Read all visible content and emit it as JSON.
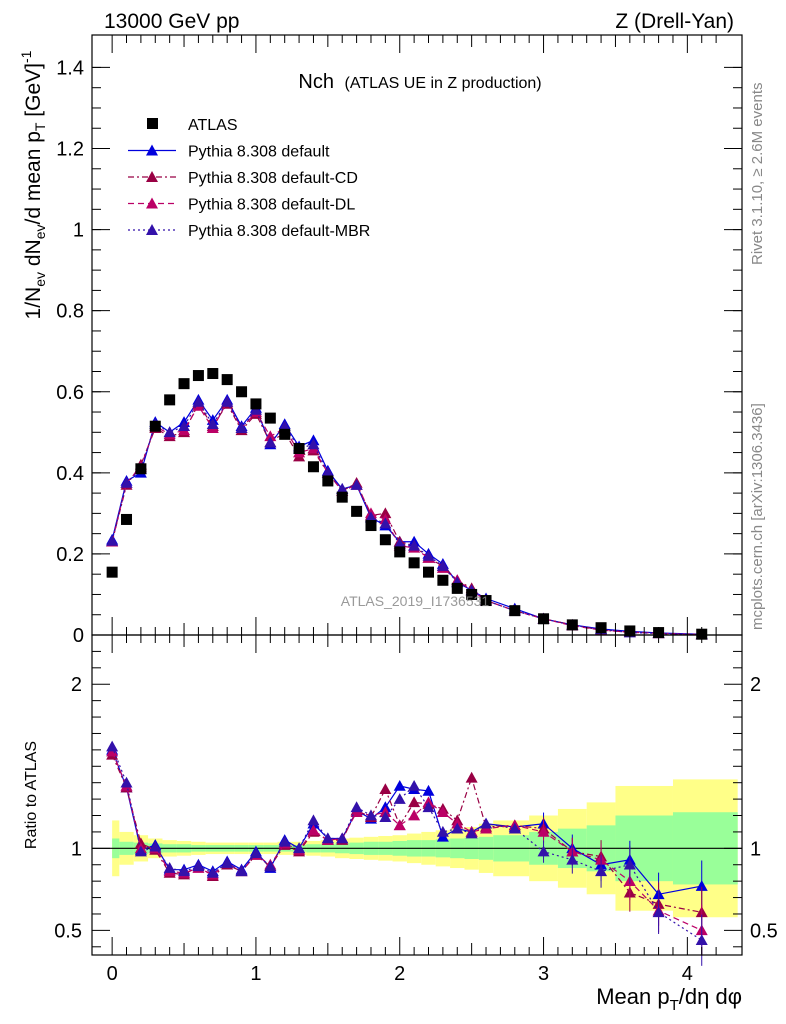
{
  "header": {
    "left": "13000 GeV pp",
    "right": "Z (Drell-Yan)"
  },
  "side_labels": {
    "rivet": "Rivet 3.1.10, ≥ 2.6M events",
    "mcplots": "mcplots.cern.ch [arXiv:1306.3436]"
  },
  "watermark": "ATLAS_2019_I1736531",
  "chart_data": [
    {
      "type": "scatter",
      "title": "Nch",
      "subtitle": "(ATLAS UE in Z production)",
      "ylabel": "1/N_ev dN_ev/d mean p_T [GeV]^-1",
      "xlim": [
        -0.14,
        4.38
      ],
      "ylim": [
        0,
        1.48
      ],
      "y_ticks": [
        "0",
        "0.2",
        "0.4",
        "0.6",
        "0.8",
        "1",
        "1.2",
        "1.4"
      ],
      "grid": false,
      "legend_position": "top-left",
      "series": [
        {
          "name": "ATLAS",
          "style": "data",
          "color": "#000000",
          "x": [
            0.0,
            0.1,
            0.2,
            0.3,
            0.4,
            0.5,
            0.6,
            0.7,
            0.8,
            0.9,
            1.0,
            1.1,
            1.2,
            1.3,
            1.4,
            1.5,
            1.6,
            1.7,
            1.8,
            1.9,
            2.0,
            2.1,
            2.2,
            2.3,
            2.4,
            2.5,
            2.6,
            2.8,
            3.0,
            3.2,
            3.4,
            3.6,
            3.8,
            4.1
          ],
          "y": [
            0.155,
            0.285,
            0.41,
            0.515,
            0.58,
            0.62,
            0.64,
            0.645,
            0.63,
            0.6,
            0.57,
            0.535,
            0.495,
            0.46,
            0.415,
            0.38,
            0.34,
            0.305,
            0.27,
            0.235,
            0.205,
            0.178,
            0.155,
            0.135,
            0.115,
            0.1,
            0.085,
            0.06,
            0.04,
            0.025,
            0.018,
            0.01,
            0.006,
            0.002
          ]
        },
        {
          "name": "Pythia 8.308 default",
          "style": "solid",
          "color": "#0000dd",
          "x": [
            0.0,
            0.1,
            0.2,
            0.3,
            0.4,
            0.5,
            0.6,
            0.7,
            0.8,
            0.9,
            1.0,
            1.1,
            1.2,
            1.3,
            1.4,
            1.5,
            1.6,
            1.7,
            1.8,
            1.9,
            2.0,
            2.1,
            2.2,
            2.3,
            2.4,
            2.5,
            2.6,
            2.8,
            3.0,
            3.2,
            3.4,
            3.6,
            3.8,
            4.1
          ],
          "y": [
            0.235,
            0.38,
            0.4,
            0.525,
            0.5,
            0.525,
            0.58,
            0.53,
            0.58,
            0.515,
            0.56,
            0.47,
            0.52,
            0.465,
            0.48,
            0.405,
            0.36,
            0.37,
            0.29,
            0.27,
            0.23,
            0.23,
            0.2,
            0.175,
            0.13,
            0.11,
            0.09,
            0.065,
            0.04,
            0.025,
            0.015,
            0.009,
            0.005,
            0.002
          ]
        },
        {
          "name": "Pythia 8.308 default-CD",
          "style": "dashdot",
          "color": "#990044",
          "x": [
            0.0,
            0.1,
            0.2,
            0.3,
            0.4,
            0.5,
            0.6,
            0.7,
            0.8,
            0.9,
            1.0,
            1.1,
            1.2,
            1.3,
            1.4,
            1.5,
            1.6,
            1.7,
            1.8,
            1.9,
            2.0,
            2.1,
            2.2,
            2.3,
            2.4,
            2.5,
            2.6,
            2.8,
            3.0,
            3.2,
            3.4,
            3.6,
            3.8,
            4.1
          ],
          "y": [
            0.23,
            0.37,
            0.42,
            0.51,
            0.49,
            0.5,
            0.57,
            0.515,
            0.57,
            0.505,
            0.545,
            0.475,
            0.5,
            0.44,
            0.455,
            0.4,
            0.355,
            0.375,
            0.295,
            0.3,
            0.23,
            0.22,
            0.19,
            0.17,
            0.135,
            0.115,
            0.085,
            0.06,
            0.04,
            0.025,
            0.012,
            0.007,
            0.004,
            0.001
          ]
        },
        {
          "name": "Pythia 8.308 default-DL",
          "style": "dashed",
          "color": "#bb0066",
          "x": [
            0.0,
            0.1,
            0.2,
            0.3,
            0.4,
            0.5,
            0.6,
            0.7,
            0.8,
            0.9,
            1.0,
            1.1,
            1.2,
            1.3,
            1.4,
            1.5,
            1.6,
            1.7,
            1.8,
            1.9,
            2.0,
            2.1,
            2.2,
            2.3,
            2.4,
            2.5,
            2.6,
            2.8,
            3.0,
            3.2,
            3.4,
            3.6,
            3.8,
            4.1
          ],
          "y": [
            0.23,
            0.375,
            0.415,
            0.515,
            0.495,
            0.505,
            0.565,
            0.51,
            0.575,
            0.51,
            0.55,
            0.49,
            0.51,
            0.45,
            0.46,
            0.4,
            0.355,
            0.37,
            0.3,
            0.285,
            0.22,
            0.215,
            0.19,
            0.165,
            0.135,
            0.11,
            0.085,
            0.06,
            0.04,
            0.023,
            0.012,
            0.007,
            0.004,
            0.001
          ]
        },
        {
          "name": "Pythia 8.308 default-MBR",
          "style": "dotted",
          "color": "#3311aa",
          "x": [
            0.0,
            0.1,
            0.2,
            0.3,
            0.4,
            0.5,
            0.6,
            0.7,
            0.8,
            0.9,
            1.0,
            1.1,
            1.2,
            1.3,
            1.4,
            1.5,
            1.6,
            1.7,
            1.8,
            1.9,
            2.0,
            2.1,
            2.2,
            2.3,
            2.4,
            2.5,
            2.6,
            2.8,
            3.0,
            3.2,
            3.4,
            3.6,
            3.8,
            4.1
          ],
          "y": [
            0.232,
            0.375,
            0.41,
            0.52,
            0.5,
            0.515,
            0.575,
            0.52,
            0.575,
            0.51,
            0.555,
            0.475,
            0.515,
            0.46,
            0.47,
            0.4,
            0.36,
            0.37,
            0.29,
            0.275,
            0.225,
            0.22,
            0.195,
            0.17,
            0.13,
            0.11,
            0.085,
            0.06,
            0.04,
            0.024,
            0.014,
            0.006,
            0.004,
            0.001
          ]
        }
      ]
    },
    {
      "type": "scatter",
      "ylabel": "Ratio to ATLAS",
      "xlabel": "Mean p_T/dη dφ",
      "xlim": [
        -0.14,
        4.38
      ],
      "ylim": [
        0.35,
        2.3
      ],
      "x_ticks": [
        "0",
        "1",
        "2",
        "3",
        "4"
      ],
      "y_ticks": [
        "0.5",
        "1",
        "2"
      ],
      "reference_line": 1,
      "bands": {
        "edges": [
          0.0,
          0.05,
          0.15,
          0.25,
          0.35,
          0.45,
          0.55,
          0.65,
          0.75,
          0.85,
          0.95,
          1.05,
          1.15,
          1.25,
          1.35,
          1.45,
          1.55,
          1.65,
          1.75,
          1.85,
          1.95,
          2.05,
          2.15,
          2.25,
          2.35,
          2.45,
          2.55,
          2.65,
          2.9,
          3.1,
          3.3,
          3.5,
          3.9,
          4.35
        ],
        "inner": [
          0.06,
          0.04,
          0.035,
          0.03,
          0.025,
          0.025,
          0.02,
          0.02,
          0.02,
          0.02,
          0.02,
          0.02,
          0.02,
          0.02,
          0.025,
          0.025,
          0.03,
          0.035,
          0.04,
          0.04,
          0.045,
          0.05,
          0.05,
          0.055,
          0.06,
          0.065,
          0.07,
          0.08,
          0.1,
          0.12,
          0.14,
          0.2,
          0.22
        ],
        "outer": [
          0.17,
          0.1,
          0.08,
          0.06,
          0.05,
          0.045,
          0.04,
          0.035,
          0.035,
          0.035,
          0.035,
          0.035,
          0.04,
          0.04,
          0.045,
          0.05,
          0.06,
          0.065,
          0.07,
          0.075,
          0.08,
          0.09,
          0.1,
          0.11,
          0.12,
          0.13,
          0.15,
          0.17,
          0.2,
          0.24,
          0.28,
          0.38,
          0.42
        ]
      },
      "series": [
        {
          "name": "Pythia 8.308 default",
          "style": "solid",
          "color": "#0000dd",
          "x": [
            0.0,
            0.1,
            0.2,
            0.3,
            0.4,
            0.5,
            0.6,
            0.7,
            0.8,
            0.9,
            1.0,
            1.1,
            1.2,
            1.3,
            1.4,
            1.5,
            1.6,
            1.7,
            1.8,
            1.9,
            2.0,
            2.1,
            2.2,
            2.3,
            2.4,
            2.5,
            2.6,
            2.8,
            3.0,
            3.2,
            3.4,
            3.6,
            3.8,
            4.1
          ],
          "y": [
            1.6,
            1.37,
            0.99,
            1.02,
            0.87,
            0.87,
            0.9,
            0.86,
            0.92,
            0.87,
            0.98,
            0.88,
            1.05,
            1.0,
            1.15,
            1.06,
            1.06,
            1.23,
            1.18,
            1.25,
            1.38,
            1.36,
            1.35,
            1.07,
            1.12,
            1.1,
            1.15,
            1.13,
            1.15,
            1.0,
            0.9,
            0.93,
            0.72,
            0.77
          ]
        },
        {
          "name": "Pythia 8.308 default-CD",
          "style": "dashdot",
          "color": "#990044",
          "x": [
            0.0,
            0.1,
            0.2,
            0.3,
            0.4,
            0.5,
            0.6,
            0.7,
            0.8,
            0.9,
            1.0,
            1.1,
            1.2,
            1.3,
            1.4,
            1.5,
            1.6,
            1.7,
            1.8,
            1.9,
            2.0,
            2.1,
            2.2,
            2.3,
            2.4,
            2.5,
            2.6,
            2.8,
            3.0,
            3.2,
            3.4,
            3.6,
            3.8,
            4.1
          ],
          "y": [
            1.57,
            1.37,
            1.03,
            0.99,
            0.85,
            0.84,
            0.89,
            0.83,
            0.9,
            0.86,
            0.96,
            0.89,
            1.02,
            0.98,
            1.1,
            1.05,
            1.05,
            1.23,
            1.19,
            1.36,
            1.14,
            1.28,
            1.27,
            1.24,
            1.17,
            1.43,
            1.13,
            1.14,
            1.12,
            0.98,
            0.95,
            0.73,
            0.66,
            0.61
          ]
        },
        {
          "name": "Pythia 8.308 default-DL",
          "style": "dashed",
          "color": "#bb0066",
          "x": [
            0.0,
            0.1,
            0.2,
            0.3,
            0.4,
            0.5,
            0.6,
            0.7,
            0.8,
            0.9,
            1.0,
            1.1,
            1.2,
            1.3,
            1.4,
            1.5,
            1.6,
            1.7,
            1.8,
            1.9,
            2.0,
            2.1,
            2.2,
            2.3,
            2.4,
            2.5,
            2.6,
            2.8,
            3.0,
            3.2,
            3.4,
            3.6,
            3.8,
            4.1
          ],
          "y": [
            1.59,
            1.38,
            1.0,
            1.0,
            0.86,
            0.85,
            0.88,
            0.84,
            0.91,
            0.86,
            0.96,
            0.9,
            1.03,
            0.99,
            1.11,
            1.05,
            1.06,
            1.22,
            1.2,
            1.22,
            1.14,
            1.2,
            1.28,
            1.22,
            1.15,
            1.1,
            1.12,
            1.14,
            1.1,
            0.98,
            0.93,
            0.8,
            0.62,
            0.5
          ]
        },
        {
          "name": "Pythia 8.308 default-MBR",
          "style": "dotted",
          "color": "#3311aa",
          "x": [
            0.0,
            0.1,
            0.2,
            0.3,
            0.4,
            0.5,
            0.6,
            0.7,
            0.8,
            0.9,
            1.0,
            1.1,
            1.2,
            1.3,
            1.4,
            1.5,
            1.6,
            1.7,
            1.8,
            1.9,
            2.0,
            2.1,
            2.2,
            2.3,
            2.4,
            2.5,
            2.6,
            2.8,
            3.0,
            3.2,
            3.4,
            3.6,
            3.8,
            4.1
          ],
          "y": [
            1.62,
            1.4,
            0.98,
            1.01,
            0.88,
            0.86,
            0.89,
            0.85,
            0.91,
            0.86,
            0.97,
            0.89,
            1.04,
            1.0,
            1.17,
            1.06,
            1.06,
            1.25,
            1.2,
            1.19,
            1.3,
            1.38,
            1.25,
            1.1,
            1.12,
            1.09,
            1.15,
            1.12,
            0.98,
            0.93,
            0.86,
            0.9,
            0.61,
            0.44
          ]
        }
      ]
    }
  ]
}
